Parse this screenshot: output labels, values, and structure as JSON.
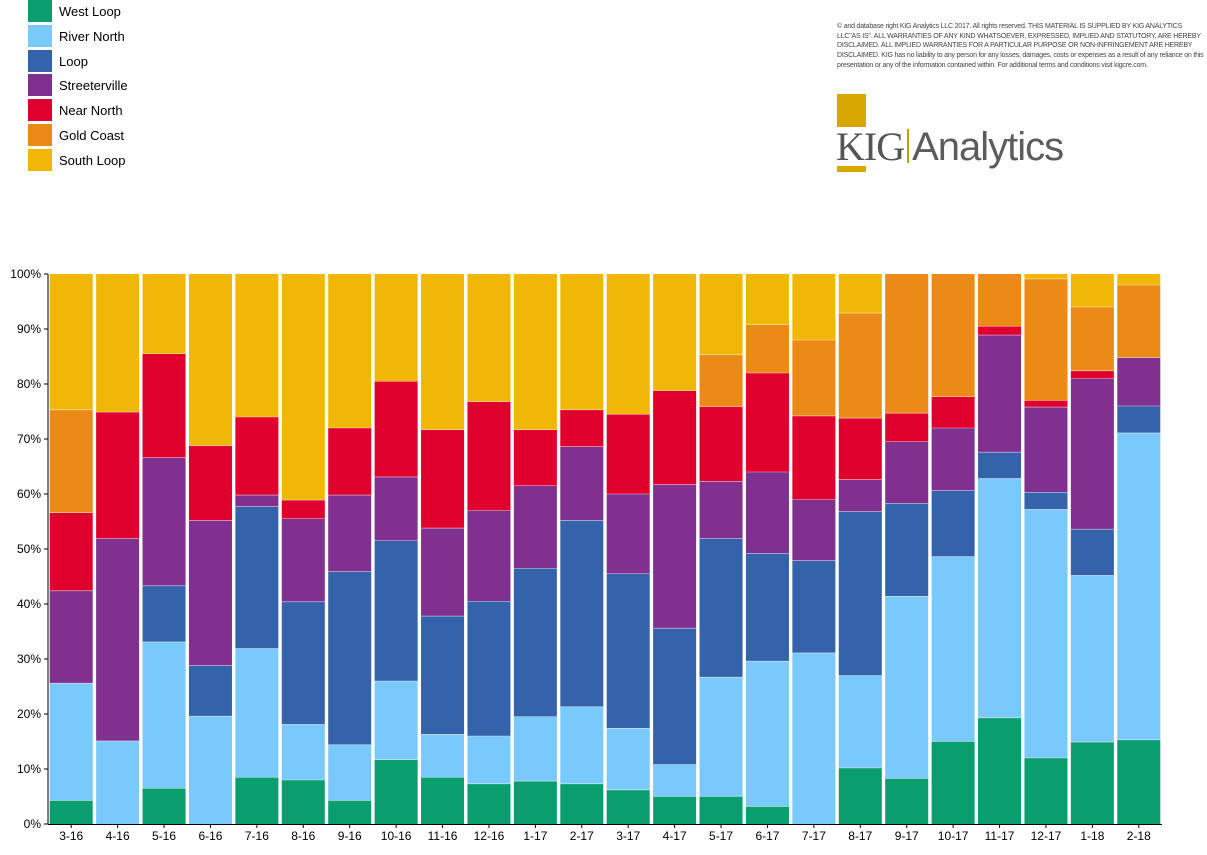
{
  "legend": [
    {
      "label": "West Loop",
      "color": "#0a9e6e"
    },
    {
      "label": "River North",
      "color": "#79c9fc"
    },
    {
      "label": "Loop",
      "color": "#3463ab"
    },
    {
      "label": "Streeterville",
      "color": "#80308f"
    },
    {
      "label": "Near North",
      "color": "#e0002e"
    },
    {
      "label": "Gold Coast",
      "color": "#ec8a17"
    },
    {
      "label": "South Loop",
      "color": "#f0b707"
    }
  ],
  "copyright": "©  and database right KIG Analytics LLC 2017. All rights reserved. THIS MATERIAL IS SUPPLIED BY KIG ANALYTICS LLC\"AS IS\". ALL WARRANTIES OF ANY KIND WHATSOEVER, EXPRESSED, IMPLIED AND STATUTORY, ARE HEREBY DISCLAIMED. ALL IMPLIED WARRANTIES FOR A PARTICULAR PURPOSE OR NON-INFRINGEMENT ARE HEREBY DISCLAIMED. KIG has no liability to any person for any losses, damages, costs or expenses as a result of any reliance on this presentation or any of the information contained within. For additional terms and conditions visit kigcre.com.",
  "logo": {
    "kig": "KIG",
    "analytics": "Analytics"
  },
  "chart_data": {
    "type": "bar",
    "stacked": true,
    "percent": true,
    "title": "",
    "xlabel": "",
    "ylabel": "",
    "ylim": [
      0,
      100
    ],
    "yticks": [
      "0%",
      "10%",
      "20%",
      "30%",
      "40%",
      "50%",
      "60%",
      "70%",
      "80%",
      "90%",
      "100%"
    ],
    "categories": [
      "3-16",
      "4-16",
      "5-16",
      "6-16",
      "7-16",
      "8-16",
      "9-16",
      "10-16",
      "11-16",
      "12-16",
      "1-17",
      "2-17",
      "3-17",
      "4-17",
      "5-17",
      "6-17",
      "7-17",
      "8-17",
      "9-17",
      "10-17",
      "11-17",
      "12-17",
      "1-18",
      "2-18"
    ],
    "series": [
      {
        "name": "West Loop",
        "color": "#0a9e6e",
        "values": [
          4.3,
          0,
          6.5,
          0,
          8.5,
          8,
          4.3,
          11.7,
          8.5,
          7.3,
          7.8,
          7.3,
          6.2,
          5,
          5,
          3.2,
          0,
          10.2,
          8.3,
          15,
          19.3,
          12,
          14.9,
          15.3
        ]
      },
      {
        "name": "River North",
        "color": "#79c9fc",
        "values": [
          21.3,
          15.1,
          26.6,
          19.6,
          23.4,
          10.1,
          10.1,
          14.3,
          7.8,
          8.7,
          11.7,
          14,
          11.2,
          5.8,
          21.7,
          26.4,
          31.1,
          16.8,
          33.1,
          33.6,
          43.5,
          45.2,
          30.3,
          55.8
        ]
      },
      {
        "name": "Loop",
        "color": "#3463ab",
        "values": [
          0,
          0,
          10.2,
          9.2,
          25.8,
          22.3,
          31.5,
          25.5,
          21.5,
          24.5,
          27,
          33.9,
          28.1,
          24.8,
          25.2,
          19.6,
          16.8,
          29.8,
          16.9,
          12,
          4.8,
          3.1,
          8.4,
          4.9
        ]
      },
      {
        "name": "Streeterville",
        "color": "#80308f",
        "values": [
          16.8,
          36.8,
          23.3,
          26.4,
          2.1,
          15.1,
          13.9,
          11.6,
          16,
          16.5,
          15,
          13.4,
          14.5,
          26.1,
          10.4,
          14.8,
          11.1,
          5.8,
          11.2,
          11.4,
          21.3,
          15.5,
          27.4,
          8.8
        ]
      },
      {
        "name": "Near North",
        "color": "#e0002e",
        "values": [
          14.2,
          23,
          18.9,
          13.6,
          14.2,
          3.4,
          12.2,
          17.4,
          17.9,
          19.8,
          10.2,
          6.7,
          14.5,
          17.1,
          13.6,
          18,
          15.2,
          11.2,
          5.2,
          5.7,
          1.6,
          1.2,
          1.4,
          0
        ]
      },
      {
        "name": "Gold Coast",
        "color": "#ec8a17",
        "values": [
          18.7,
          0,
          0,
          0,
          0,
          0,
          0,
          0,
          0,
          0,
          0,
          0,
          0,
          0,
          9.4,
          8.8,
          13.8,
          19.1,
          25.3,
          22.3,
          9.5,
          22.1,
          11.6,
          13.2
        ]
      },
      {
        "name": "South Loop",
        "color": "#f0b707",
        "values": [
          24.7,
          25.1,
          14.5,
          31.2,
          26,
          41.1,
          28,
          19.5,
          28.3,
          23.2,
          28.3,
          24.7,
          25.5,
          21.2,
          14.7,
          9.2,
          12,
          7.1,
          0,
          0,
          0,
          0.9,
          6,
          2
        ]
      }
    ]
  }
}
